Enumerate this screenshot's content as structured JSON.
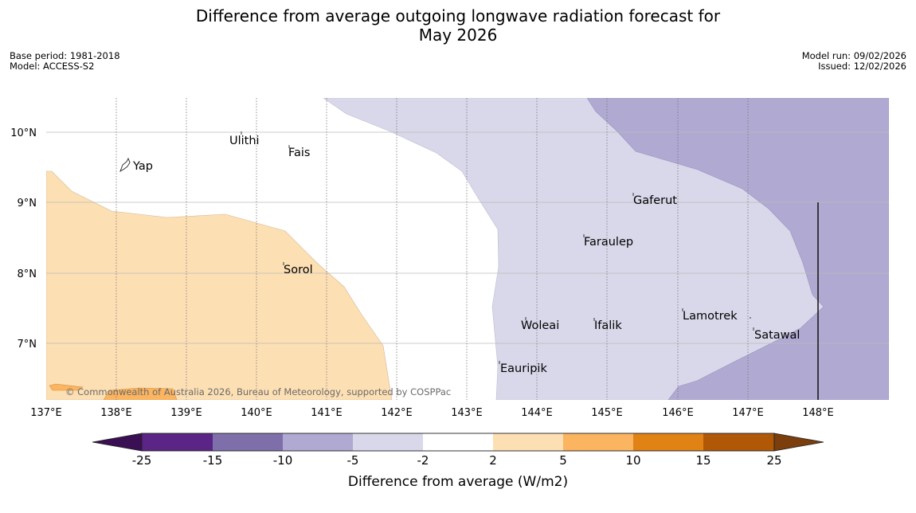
{
  "title_line1": "Difference from average outgoing longwave radiation forecast for",
  "title_line2": "May 2026",
  "meta": {
    "base_period": "Base period: 1981-2018",
    "model": "Model: ACCESS-S2",
    "model_run": "Model run: 09/02/2026",
    "issued": "Issued: 12/02/2026"
  },
  "copyright": "© Commonwealth of Australia 2026, Bureau of Meteorology, supported by COSPPac",
  "map": {
    "lon_ticks": [
      "137°E",
      "138°E",
      "139°E",
      "140°E",
      "141°E",
      "142°E",
      "143°E",
      "144°E",
      "145°E",
      "146°E",
      "147°E",
      "148°E"
    ],
    "lat_ticks": [
      "10°N",
      "9°N",
      "8°N",
      "7°N"
    ],
    "places": [
      "Yap",
      "Ulithi",
      "Fais",
      "Sorol",
      "Gaferut",
      "Faraulep",
      "Woleai",
      "Ifalik",
      "Lamotrek",
      "Satawal",
      "Eauripik"
    ]
  },
  "colorbar": {
    "label": "Difference from average (W/m2)",
    "ticks": [
      "-25",
      "-15",
      "-10",
      "-5",
      "-2",
      "2",
      "5",
      "10",
      "15",
      "25"
    ],
    "colors": {
      "below_-25": "#3b0f53",
      "-25_-15": "#5a2585",
      "-15_-10": "#7e6eaa",
      "-10_-5": "#b0a9d1",
      "-5_-2": "#d8d8ea",
      "-2_2": "#ffffff",
      "2_5": "#fddfb4",
      "5_10": "#fbb45f",
      "10_15": "#e08214",
      "15_25": "#b15806",
      "above_25": "#7b3e0c"
    }
  }
}
